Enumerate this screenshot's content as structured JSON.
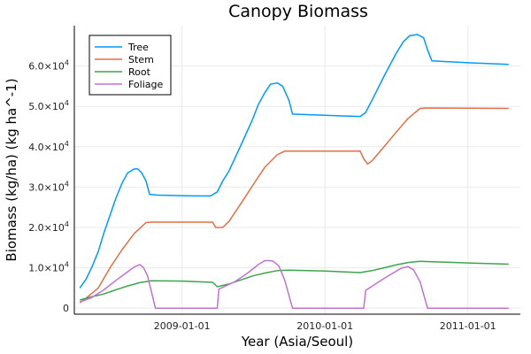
{
  "chart_data": {
    "type": "line",
    "title": "Canopy Biomass",
    "xlabel": "Year (Asia/Seoul)",
    "ylabel": "Biomass (kg/ha) (kg ha^-1)",
    "xlim": [
      "2008-04-01",
      "2011-05-15"
    ],
    "ylim": [
      -1500,
      70000
    ],
    "grid": true,
    "legend_position": "top-left",
    "x_ticks": [
      {
        "value": "2009-01-01",
        "label": "2009-01-01"
      },
      {
        "value": "2010-01-01",
        "label": "2010-01-01"
      },
      {
        "value": "2011-01-01",
        "label": "2011-01-01"
      }
    ],
    "y_ticks": [
      {
        "value": 0,
        "base": "0",
        "exp": ""
      },
      {
        "value": 10000,
        "base": "1.0×10",
        "exp": "4"
      },
      {
        "value": 20000,
        "base": "2.0×10",
        "exp": "4"
      },
      {
        "value": 30000,
        "base": "3.0×10",
        "exp": "4"
      },
      {
        "value": 40000,
        "base": "4.0×10",
        "exp": "4"
      },
      {
        "value": 50000,
        "base": "5.0×10",
        "exp": "4"
      },
      {
        "value": 60000,
        "base": "6.0×10",
        "exp": "4"
      }
    ],
    "series": [
      {
        "name": "Tree",
        "color": "#009AFA",
        "points": [
          [
            "2008-04-15",
            5000
          ],
          [
            "2008-05-01",
            7200
          ],
          [
            "2008-05-15",
            10000
          ],
          [
            "2008-06-01",
            14000
          ],
          [
            "2008-06-15",
            18500
          ],
          [
            "2008-07-01",
            23000
          ],
          [
            "2008-07-15",
            27000
          ],
          [
            "2008-08-01",
            31000
          ],
          [
            "2008-08-15",
            33500
          ],
          [
            "2008-09-01",
            34500
          ],
          [
            "2008-09-10",
            34500
          ],
          [
            "2008-09-20",
            33500
          ],
          [
            "2008-10-01",
            31500
          ],
          [
            "2008-10-10",
            28200
          ],
          [
            "2008-11-01",
            28000
          ],
          [
            "2009-02-01",
            27800
          ],
          [
            "2009-03-15",
            27800
          ],
          [
            "2009-04-01",
            28800
          ],
          [
            "2009-04-15",
            31500
          ],
          [
            "2009-05-01",
            34000
          ],
          [
            "2009-06-01",
            40500
          ],
          [
            "2009-07-01",
            47000
          ],
          [
            "2009-07-15",
            50500
          ],
          [
            "2009-08-01",
            53500
          ],
          [
            "2009-08-15",
            55500
          ],
          [
            "2009-09-01",
            55800
          ],
          [
            "2009-09-15",
            55000
          ],
          [
            "2009-10-01",
            51500
          ],
          [
            "2009-10-10",
            48100
          ],
          [
            "2009-11-01",
            48000
          ],
          [
            "2010-02-01",
            47700
          ],
          [
            "2010-04-01",
            47500
          ],
          [
            "2010-04-15",
            48500
          ],
          [
            "2010-05-01",
            51500
          ],
          [
            "2010-06-01",
            57500
          ],
          [
            "2010-07-01",
            63000
          ],
          [
            "2010-07-20",
            66000
          ],
          [
            "2010-08-05",
            67500
          ],
          [
            "2010-08-25",
            67800
          ],
          [
            "2010-09-10",
            67000
          ],
          [
            "2010-09-20",
            64000
          ],
          [
            "2010-10-01",
            61300
          ],
          [
            "2011-01-01",
            60800
          ],
          [
            "2011-04-15",
            60400
          ]
        ]
      },
      {
        "name": "Stem",
        "color": "#E26F46",
        "points": [
          [
            "2008-04-15",
            1300
          ],
          [
            "2008-05-01",
            2500
          ],
          [
            "2008-06-01",
            5000
          ],
          [
            "2008-07-01",
            10000
          ],
          [
            "2008-08-01",
            14500
          ],
          [
            "2008-09-01",
            18500
          ],
          [
            "2008-10-01",
            21200
          ],
          [
            "2008-10-15",
            21300
          ],
          [
            "2009-03-20",
            21300
          ],
          [
            "2009-03-28",
            20000
          ],
          [
            "2009-04-15",
            20000
          ],
          [
            "2009-05-01",
            21500
          ],
          [
            "2009-06-01",
            26000
          ],
          [
            "2009-07-01",
            30500
          ],
          [
            "2009-08-01",
            35000
          ],
          [
            "2009-09-01",
            38000
          ],
          [
            "2009-09-20",
            38900
          ],
          [
            "2010-04-01",
            38900
          ],
          [
            "2010-04-10",
            37000
          ],
          [
            "2010-04-20",
            35700
          ],
          [
            "2010-05-01",
            36500
          ],
          [
            "2010-06-01",
            40000
          ],
          [
            "2010-07-01",
            43500
          ],
          [
            "2010-08-01",
            47000
          ],
          [
            "2010-09-01",
            49500
          ],
          [
            "2010-09-15",
            49600
          ],
          [
            "2011-04-15",
            49500
          ]
        ]
      },
      {
        "name": "Root",
        "color": "#3DA44D",
        "points": [
          [
            "2008-04-15",
            2000
          ],
          [
            "2008-05-15",
            2800
          ],
          [
            "2008-06-15",
            3500
          ],
          [
            "2008-07-15",
            4500
          ],
          [
            "2008-08-15",
            5500
          ],
          [
            "2008-09-15",
            6300
          ],
          [
            "2008-10-15",
            6800
          ],
          [
            "2009-01-01",
            6700
          ],
          [
            "2009-03-20",
            6400
          ],
          [
            "2009-04-01",
            5300
          ],
          [
            "2009-05-01",
            6000
          ],
          [
            "2009-06-01",
            7000
          ],
          [
            "2009-07-01",
            8000
          ],
          [
            "2009-08-01",
            8700
          ],
          [
            "2009-09-01",
            9300
          ],
          [
            "2009-10-01",
            9400
          ],
          [
            "2010-01-01",
            9200
          ],
          [
            "2010-04-01",
            8800
          ],
          [
            "2010-05-01",
            9300
          ],
          [
            "2010-06-01",
            10000
          ],
          [
            "2010-07-01",
            10700
          ],
          [
            "2010-08-01",
            11300
          ],
          [
            "2010-09-01",
            11600
          ],
          [
            "2010-10-01",
            11500
          ],
          [
            "2011-01-01",
            11200
          ],
          [
            "2011-04-15",
            10900
          ]
        ]
      },
      {
        "name": "Foliage",
        "color": "#C271D2",
        "points": [
          [
            "2008-04-15",
            1500
          ],
          [
            "2008-05-15",
            2600
          ],
          [
            "2008-06-15",
            4500
          ],
          [
            "2008-07-15",
            6800
          ],
          [
            "2008-08-15",
            9000
          ],
          [
            "2008-09-01",
            10200
          ],
          [
            "2008-09-15",
            10800
          ],
          [
            "2008-09-25",
            10000
          ],
          [
            "2008-10-05",
            8000
          ],
          [
            "2008-10-15",
            4000
          ],
          [
            "2008-10-25",
            0
          ],
          [
            "2009-04-01",
            0
          ],
          [
            "2009-04-05",
            4700
          ],
          [
            "2009-05-15",
            6500
          ],
          [
            "2009-06-15",
            8500
          ],
          [
            "2009-07-15",
            10800
          ],
          [
            "2009-08-01",
            11800
          ],
          [
            "2009-08-20",
            11700
          ],
          [
            "2009-09-05",
            10500
          ],
          [
            "2009-09-20",
            7000
          ],
          [
            "2009-10-10",
            0
          ],
          [
            "2010-04-10",
            0
          ],
          [
            "2010-04-15",
            4400
          ],
          [
            "2010-05-15",
            6300
          ],
          [
            "2010-06-15",
            8200
          ],
          [
            "2010-07-15",
            9900
          ],
          [
            "2010-08-01",
            10300
          ],
          [
            "2010-08-15",
            9500
          ],
          [
            "2010-09-01",
            6500
          ],
          [
            "2010-09-20",
            0
          ],
          [
            "2011-04-15",
            0
          ]
        ]
      }
    ]
  }
}
